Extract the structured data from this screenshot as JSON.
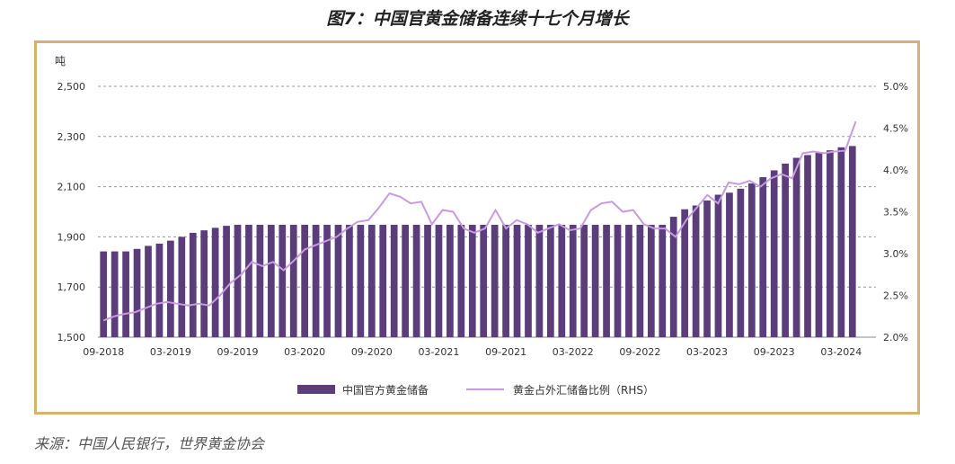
{
  "title": "图7：中国官黄金储备连续十七个月增长",
  "source": "来源：中国人民银行，世界黄金协会",
  "colors": {
    "bar": "#5a3d7a",
    "line": "#c89be0",
    "grid": "#999999",
    "frame": "#d2b46b"
  },
  "chart_data": {
    "type": "bar",
    "left_axis": {
      "unit": "吨",
      "min": 1500,
      "max": 2500,
      "ticks": [
        "1,500",
        "1,700",
        "1,900",
        "2,100",
        "2,300",
        "2,500"
      ],
      "tick_values": [
        1500,
        1700,
        1900,
        2100,
        2300,
        2500
      ]
    },
    "right_axis": {
      "min": 2.0,
      "max": 5.0,
      "ticks": [
        "2.0%",
        "2.5%",
        "3.0%",
        "3.5%",
        "4.0%",
        "4.5%",
        "5.0%"
      ],
      "tick_values": [
        2.0,
        2.5,
        3.0,
        3.5,
        4.0,
        4.5,
        5.0
      ]
    },
    "x_ticks": [
      "09-2018",
      "03-2019",
      "09-2019",
      "03-2020",
      "09-2020",
      "03-2021",
      "09-2021",
      "03-2022",
      "09-2022",
      "03-2023",
      "09-2023",
      "03-2024"
    ],
    "x_tick_month_index": [
      0,
      6,
      12,
      18,
      24,
      30,
      36,
      42,
      48,
      54,
      60,
      66
    ],
    "grid": true,
    "legend_position": "bottom",
    "series": [
      {
        "name": "中国官方黄金储备",
        "kind": "bar",
        "axis": "left",
        "values": [
          1842,
          1842,
          1842,
          1852,
          1864,
          1873,
          1885,
          1900,
          1916,
          1926,
          1936,
          1944,
          1948,
          1948,
          1948,
          1948,
          1948,
          1948,
          1948,
          1948,
          1948,
          1948,
          1948,
          1948,
          1948,
          1948,
          1948,
          1948,
          1948,
          1948,
          1948,
          1948,
          1948,
          1948,
          1948,
          1948,
          1948,
          1948,
          1948,
          1948,
          1948,
          1948,
          1948,
          1948,
          1948,
          1948,
          1948,
          1948,
          1948,
          1948,
          1948,
          1980,
          2010,
          2025,
          2045,
          2068,
          2076,
          2092,
          2113,
          2138,
          2165,
          2192,
          2215,
          2226,
          2235,
          2245,
          2257,
          2262
        ]
      },
      {
        "name": "黄金占外汇储备比例（RHS）",
        "kind": "line",
        "axis": "right",
        "values": [
          2.2,
          2.25,
          2.28,
          2.3,
          2.35,
          2.4,
          2.42,
          2.4,
          2.38,
          2.4,
          2.38,
          2.5,
          2.65,
          2.75,
          2.9,
          2.85,
          2.9,
          2.8,
          2.92,
          3.05,
          3.1,
          3.15,
          3.2,
          3.3,
          3.38,
          3.4,
          3.55,
          3.72,
          3.68,
          3.6,
          3.62,
          3.35,
          3.52,
          3.5,
          3.3,
          3.25,
          3.3,
          3.52,
          3.3,
          3.4,
          3.35,
          3.25,
          3.3,
          3.35,
          3.28,
          3.3,
          3.52,
          3.6,
          3.62,
          3.5,
          3.52,
          3.35,
          3.3,
          3.3,
          3.2,
          3.4,
          3.55,
          3.7,
          3.6,
          3.85,
          3.83,
          3.87,
          3.8,
          3.9,
          3.95,
          3.9,
          4.2,
          4.22,
          4.2,
          4.22,
          4.23,
          4.58
        ]
      }
    ]
  }
}
